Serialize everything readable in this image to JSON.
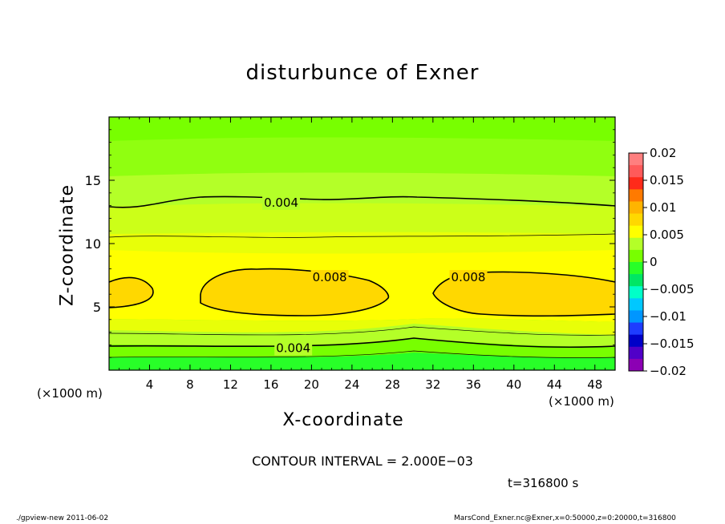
{
  "title": "disturbunce of Exner",
  "chart_data": {
    "type": "contour",
    "title": "disturbunce of Exner",
    "xlabel": "X-coordinate",
    "ylabel": "Z-coordinate",
    "x_unit_left": "(×1000 m)",
    "x_unit_right": "(×1000 m)",
    "xlim": [
      0,
      50
    ],
    "ylim": [
      0,
      20
    ],
    "x_ticks": [
      4,
      8,
      12,
      16,
      20,
      24,
      28,
      32,
      36,
      40,
      44,
      48
    ],
    "x_tick_labels": [
      "4",
      "8",
      "12",
      "16",
      "20",
      "24",
      "28",
      "32",
      "36",
      "40",
      "44",
      "48"
    ],
    "y_ticks": [
      5,
      10,
      15
    ],
    "y_tick_labels": [
      "5",
      "10",
      "15"
    ],
    "contour_labels": [
      {
        "text": "0.004",
        "x": 17.0,
        "z": 13.3
      },
      {
        "text": "0.008",
        "x": 21.8,
        "z": 7.4
      },
      {
        "text": "0.008",
        "x": 35.5,
        "z": 7.4
      },
      {
        "text": "0.004",
        "x": 18.2,
        "z": 1.8
      }
    ],
    "colorbar": {
      "levels": [
        0.02,
        0.015,
        0.01,
        0.005,
        0,
        -0.005,
        -0.01,
        -0.015,
        -0.02
      ],
      "tick_labels": [
        "0.02",
        "0.015",
        "0.01",
        "0.005",
        "0",
        "−0.005",
        "−0.01",
        "−0.015",
        "−0.02"
      ],
      "colors": [
        "#ff7f7f",
        "#ff5a5a",
        "#ff2a1a",
        "#ff7a00",
        "#ffb400",
        "#ffd800",
        "#ffff00",
        "#b4ff28",
        "#78ff00",
        "#28ff28",
        "#00e664",
        "#00ffc8",
        "#00c8ff",
        "#0096ff",
        "#1e3cff",
        "#0000c8",
        "#5000c8",
        "#8c00b4"
      ]
    },
    "contour_interval_text": "CONTOUR INTERVAL = 2.000E−03",
    "time_text": "t=316800 s"
  },
  "footer": {
    "left": "./gpview-new   2011-06-02",
    "right": "MarsCond_Exner.nc@Exner,x=0:50000,z=0:20000,t=316800"
  }
}
